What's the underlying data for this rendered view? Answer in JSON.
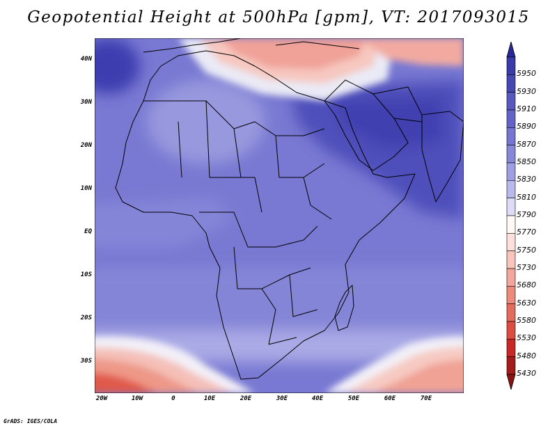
{
  "title": "Geopotential Height at 500hPa [gpm], VT: 2017093015",
  "footer": "GrADS: IGES/COLA",
  "lat_labels": [
    "40N",
    "30N",
    "20N",
    "10N",
    "EQ",
    "10S",
    "20S",
    "30S"
  ],
  "lon_labels": [
    "20W",
    "10W",
    "0",
    "10E",
    "20E",
    "30E",
    "40E",
    "50E",
    "60E",
    "70E"
  ],
  "colorbar": {
    "labels": [
      "5950",
      "5930",
      "5910",
      "5890",
      "5870",
      "5850",
      "5830",
      "5810",
      "5790",
      "5770",
      "5750",
      "5730",
      "5680",
      "5630",
      "5580",
      "5530",
      "5480",
      "5430"
    ],
    "colors": [
      "#28279c",
      "#3a3aa8",
      "#4747b4",
      "#5858be",
      "#6464c8",
      "#7676d2",
      "#8888da",
      "#9e9ee2",
      "#b9b9ec",
      "#dcdcf6",
      "#fff8f4",
      "#fce0dc",
      "#f8c4bc",
      "#f2a69c",
      "#ec8a7c",
      "#e46c5c",
      "#dc4c40",
      "#c82828",
      "#a31c1c",
      "#8c1212"
    ]
  },
  "map": {
    "region": "Africa, Middle East and western Indian Ocean",
    "lon_range": [
      -22,
      80
    ],
    "lat_range": [
      -37,
      45
    ],
    "field_colors": {
      "high_ridge": "#4646b6",
      "ridge": "#6262c6",
      "mid": "#7474d0",
      "lower": "#8585d8",
      "pale": "#a6a6e3",
      "very_pale": "#c8c8f0",
      "white": "#fbf7f7",
      "pink": "#f6c8c0",
      "salmon": "#f0a298",
      "red": "#e26050",
      "dark_red": "#c83a30"
    }
  }
}
